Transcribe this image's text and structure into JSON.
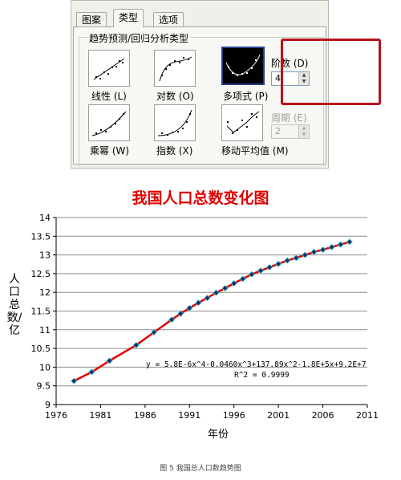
{
  "dialog": {
    "tabs": [
      "图案",
      "类型",
      "选项"
    ],
    "active_tab": 1,
    "group_title": "趋势预测/回归分析类型",
    "types": [
      {
        "label": "线性 (L)",
        "icon": "linear-trend-icon"
      },
      {
        "label": "对数 (O)",
        "icon": "log-trend-icon"
      },
      {
        "label": "多项式 (P)",
        "icon": "polynomial-trend-icon",
        "selected": true
      },
      {
        "label": "乘幂 (W)",
        "icon": "power-trend-icon"
      },
      {
        "label": "指数 (X)",
        "icon": "exponential-trend-icon"
      },
      {
        "label": "移动平均值 (M)",
        "icon": "moving-average-icon"
      }
    ],
    "order_label": "阶数 (D)",
    "order_value": "4",
    "period_label": "周期 (E)",
    "period_value": "2",
    "highlight_color": "#b8121a"
  },
  "chart": {
    "title": "我国人口总数变化图",
    "caption": "图 5  我国总人口数趋势图"
  },
  "chart_data": {
    "type": "scatter",
    "title": "我国人口总数变化图",
    "xlabel": "年份",
    "ylabel": "人口总数/亿",
    "xlim": [
      1976,
      2011
    ],
    "ylim": [
      9,
      14
    ],
    "x_ticks": [
      "1976",
      "1981",
      "1986",
      "1991",
      "1996",
      "2001",
      "2006",
      "2011"
    ],
    "y_ticks": [
      "9",
      "9.5",
      "10",
      "10.5",
      "11",
      "11.5",
      "12",
      "12.5",
      "13",
      "13.5",
      "14"
    ],
    "grid": "horizontal",
    "series": [
      {
        "marker": "diamond",
        "color": "#1a2a6c",
        "x": [
          1978,
          1980,
          1982,
          1985,
          1987,
          1989,
          1990,
          1991,
          1992,
          1993,
          1994,
          1995,
          1996,
          1997,
          1998,
          1999,
          2000,
          2001,
          2002,
          2003,
          2004,
          2005,
          2006,
          2007,
          2008,
          2009
        ],
        "y": [
          9.63,
          9.87,
          10.17,
          10.59,
          10.93,
          11.27,
          11.43,
          11.58,
          11.72,
          11.85,
          11.99,
          12.11,
          12.24,
          12.36,
          12.48,
          12.58,
          12.67,
          12.76,
          12.85,
          12.92,
          13.0,
          13.08,
          13.14,
          13.21,
          13.28,
          13.35
        ]
      }
    ],
    "trendline": {
      "type": "polynomial",
      "order": 4,
      "color": "#e00000",
      "equation": "y = 5.8E-6x^4-0.0460x^3+137.89x^2-1.8E+5x+9.2E+7",
      "r2": "R^2 = 0.9999"
    }
  }
}
